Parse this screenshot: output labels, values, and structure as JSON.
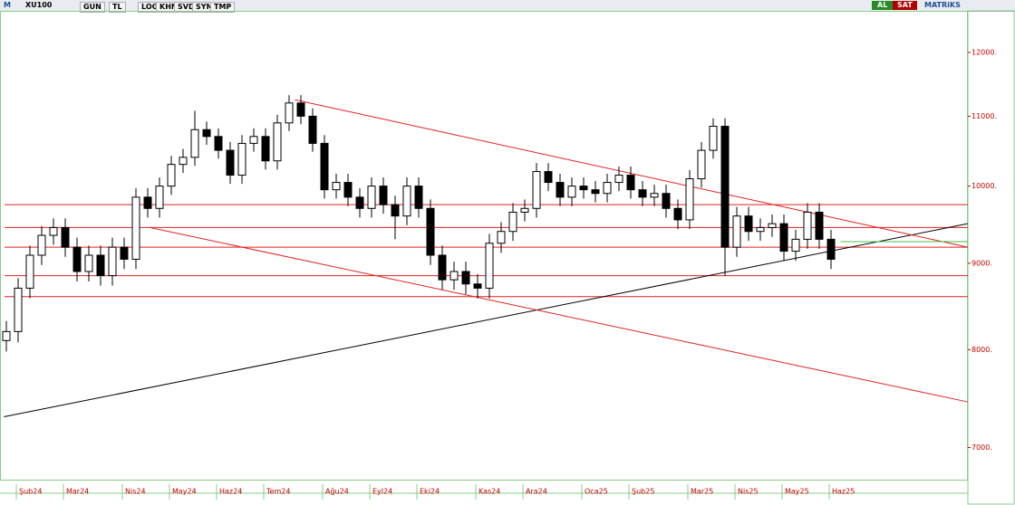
{
  "toolbar": {
    "symbol": "XU100",
    "buttons": [
      "GUN",
      "TL",
      "LOG",
      "KHN",
      "SVD",
      "SYM",
      "TMP"
    ],
    "buy": "AL",
    "sell": "SAT",
    "brand": "MATRiKS"
  },
  "chart_data": {
    "type": "candlestick",
    "log_scale": true,
    "up_color": "#ffffff",
    "down_color": "#000000",
    "categories": [
      null,
      "Şub24",
      null,
      null,
      null,
      "Mar24",
      null,
      null,
      null,
      null,
      "Nis24",
      null,
      null,
      null,
      "May24",
      null,
      null,
      null,
      "Haz24",
      null,
      null,
      null,
      "Tem24",
      null,
      null,
      null,
      null,
      "Ağu24",
      null,
      null,
      null,
      "Eyl24",
      null,
      null,
      null,
      "Eki24",
      null,
      null,
      null,
      null,
      "Kas24",
      null,
      null,
      null,
      "Ara24",
      null,
      null,
      null,
      null,
      "Oca25",
      null,
      null,
      null,
      "Şub25",
      null,
      null,
      null,
      null,
      "Mar25",
      null,
      null,
      null,
      "Nis25",
      null,
      null,
      null,
      "May25",
      null,
      null,
      null,
      "Haz25"
    ],
    "open": [
      8100,
      8200,
      8700,
      9100,
      9350,
      9450,
      9200,
      8900,
      9100,
      8850,
      9200,
      9050,
      9850,
      9700,
      10000,
      10300,
      10400,
      10800,
      10700,
      10500,
      10150,
      10600,
      10700,
      10350,
      10900,
      11200,
      11000,
      10600,
      9950,
      10050,
      9850,
      9700,
      10000,
      9750,
      9600,
      10000,
      9700,
      9100,
      8800,
      8900,
      8750,
      8700,
      9250,
      9400,
      9650,
      9700,
      10200,
      10050,
      9850,
      10000,
      9950,
      9900,
      10050,
      10150,
      9950,
      9850,
      9900,
      9700,
      9550,
      10100,
      10500,
      10850,
      9200,
      9600,
      9400,
      9450,
      9500,
      9150,
      9300,
      9650,
      9300
    ],
    "high": [
      8320,
      8820,
      9220,
      9470,
      9570,
      9570,
      9320,
      9220,
      9220,
      9320,
      9320,
      9970,
      9970,
      10120,
      10420,
      10520,
      11080,
      10920,
      10820,
      10620,
      10720,
      10820,
      10820,
      11020,
      11320,
      11320,
      11120,
      10720,
      10170,
      10170,
      9970,
      10120,
      10120,
      9870,
      10120,
      10120,
      9820,
      9220,
      9020,
      9020,
      8870,
      9370,
      9520,
      9770,
      9820,
      10320,
      10320,
      10170,
      10120,
      10120,
      10070,
      10170,
      10270,
      10270,
      10070,
      10020,
      10020,
      9820,
      10220,
      10620,
      10970,
      10970,
      9720,
      9720,
      9570,
      9620,
      9620,
      9420,
      9770,
      9770,
      9420
    ],
    "low": [
      7980,
      8080,
      8580,
      8980,
      9230,
      9080,
      8780,
      8780,
      8730,
      8730,
      8930,
      8930,
      9580,
      9580,
      9880,
      10180,
      10280,
      10580,
      10380,
      10030,
      10030,
      10480,
      10230,
      10230,
      10780,
      10880,
      10480,
      9830,
      9830,
      9730,
      9580,
      9580,
      9630,
      9300,
      9480,
      9580,
      8980,
      8680,
      8680,
      8630,
      8580,
      8580,
      9130,
      9280,
      9530,
      9580,
      9930,
      9730,
      9730,
      9830,
      9780,
      9780,
      9930,
      9830,
      9730,
      9730,
      9580,
      9430,
      9430,
      9980,
      10380,
      8850,
      9080,
      9280,
      9280,
      9330,
      9030,
      9030,
      9180,
      9180,
      8930
    ],
    "close": [
      8200,
      8700,
      9100,
      9350,
      9450,
      9200,
      8900,
      9100,
      8850,
      9200,
      9050,
      9850,
      9700,
      10000,
      10300,
      10400,
      10800,
      10700,
      10500,
      10150,
      10600,
      10700,
      10350,
      10900,
      11200,
      11000,
      10600,
      9950,
      10050,
      9850,
      9700,
      10000,
      9750,
      9600,
      10000,
      9700,
      9100,
      8800,
      8900,
      8750,
      8700,
      9250,
      9400,
      9650,
      9700,
      10200,
      10050,
      9850,
      10000,
      9950,
      9900,
      10050,
      10150,
      9950,
      9850,
      9900,
      9700,
      9550,
      10100,
      10500,
      10850,
      9200,
      9600,
      9400,
      9450,
      9500,
      9150,
      9300,
      9650,
      9300,
      9050
    ],
    "ylim": [
      6700,
      12700
    ],
    "yticks": [
      {
        "value": 7000,
        "label": "7000."
      },
      {
        "value": 8000,
        "label": "8000."
      },
      {
        "value": 9000,
        "label": "9000."
      },
      {
        "value": 10000,
        "label": "10000."
      },
      {
        "value": 11000,
        "label": "11000."
      },
      {
        "value": 12000,
        "label": "12000."
      }
    ],
    "hlines": {
      "color": "#e02020",
      "values": [
        9750,
        9450,
        9200,
        8850,
        8600
      ]
    },
    "trendlines": [
      {
        "color": "#000000",
        "x": [
          -0.2,
          81.6
        ],
        "y": [
          7300,
          9500
        ]
      },
      {
        "color": "#e02020",
        "x": [
          24.5,
          81.6
        ],
        "y": [
          11250,
          9200
        ]
      },
      {
        "color": "#e02020",
        "x": [
          12.2,
          81.6
        ],
        "y": [
          9450,
          7450
        ]
      },
      {
        "color": "#40c040",
        "x": [
          70.8,
          81.6
        ],
        "y": [
          9270,
          9270
        ]
      }
    ]
  }
}
